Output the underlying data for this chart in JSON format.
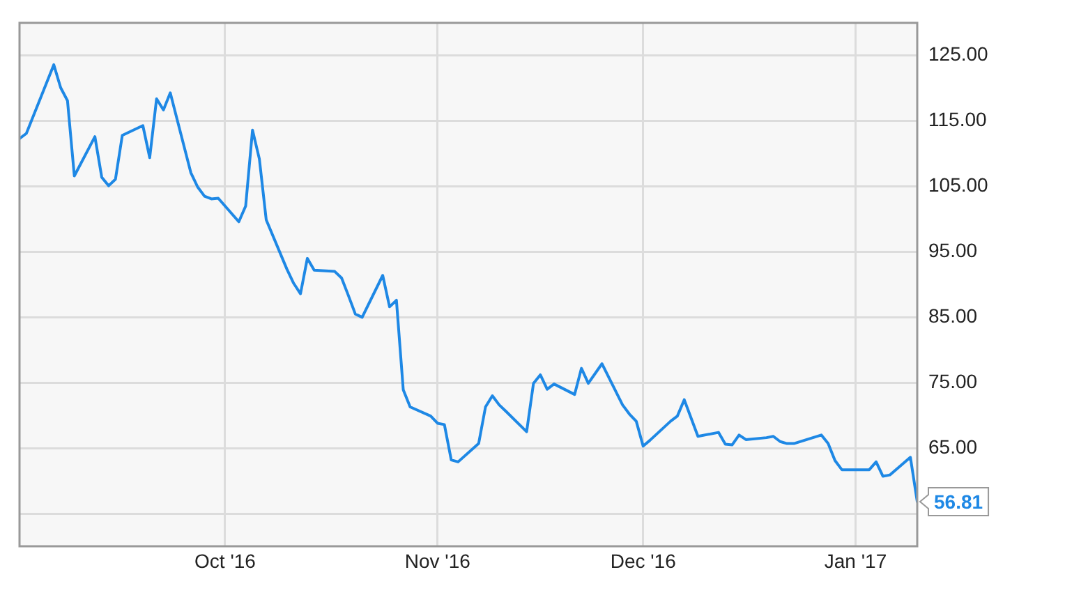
{
  "chart_data": {
    "type": "line",
    "x": [
      "2016-09-01",
      "2016-09-02",
      "2016-09-06",
      "2016-09-07",
      "2016-09-08",
      "2016-09-09",
      "2016-09-12",
      "2016-09-13",
      "2016-09-14",
      "2016-09-15",
      "2016-09-16",
      "2016-09-19",
      "2016-09-20",
      "2016-09-21",
      "2016-09-22",
      "2016-09-23",
      "2016-09-26",
      "2016-09-27",
      "2016-09-28",
      "2016-09-29",
      "2016-09-30",
      "2016-10-03",
      "2016-10-04",
      "2016-10-05",
      "2016-10-06",
      "2016-10-07",
      "2016-10-10",
      "2016-10-11",
      "2016-10-12",
      "2016-10-13",
      "2016-10-14",
      "2016-10-17",
      "2016-10-18",
      "2016-10-19",
      "2016-10-20",
      "2016-10-21",
      "2016-10-24",
      "2016-10-25",
      "2016-10-26",
      "2016-10-27",
      "2016-10-28",
      "2016-10-31",
      "2016-11-01",
      "2016-11-02",
      "2016-11-03",
      "2016-11-04",
      "2016-11-07",
      "2016-11-08",
      "2016-11-09",
      "2016-11-10",
      "2016-11-11",
      "2016-11-14",
      "2016-11-15",
      "2016-11-16",
      "2016-11-17",
      "2016-11-18",
      "2016-11-21",
      "2016-11-22",
      "2016-11-23",
      "2016-11-25",
      "2016-11-28",
      "2016-11-29",
      "2016-11-30",
      "2016-12-01",
      "2016-12-02",
      "2016-12-05",
      "2016-12-06",
      "2016-12-07",
      "2016-12-08",
      "2016-12-09",
      "2016-12-12",
      "2016-12-13",
      "2016-12-14",
      "2016-12-15",
      "2016-12-16",
      "2016-12-19",
      "2016-12-20",
      "2016-12-21",
      "2016-12-22",
      "2016-12-23",
      "2016-12-27",
      "2016-12-28",
      "2016-12-29",
      "2016-12-30",
      "2017-01-03",
      "2017-01-04",
      "2017-01-05",
      "2017-01-06",
      "2017-01-09",
      "2017-01-10"
    ],
    "series": [
      {
        "color": "#1e88e5",
        "values": [
          112.3,
          113.1,
          123.6,
          120.1,
          118.1,
          106.6,
          112.6,
          106.4,
          105.1,
          106.1,
          112.8,
          114.3,
          109.4,
          118.4,
          116.7,
          119.3,
          107.1,
          104.9,
          103.5,
          103.1,
          103.2,
          99.6,
          102,
          113.6,
          109.2,
          99.9,
          92.4,
          90.2,
          88.6,
          94,
          92.2,
          92,
          91,
          88.3,
          85.5,
          85,
          91.4,
          86.6,
          87.6,
          73.9,
          71.3,
          69.9,
          68.8,
          68.6,
          63.2,
          62.9,
          65.7,
          71.3,
          73,
          71.6,
          70.6,
          67.5,
          74.9,
          76.2,
          74,
          74.8,
          73.2,
          77.2,
          74.9,
          77.9,
          71.6,
          70.2,
          69.1,
          65.3,
          66.2,
          69.1,
          69.9,
          72.4,
          69.6,
          66.8,
          67.4,
          65.6,
          65.5,
          67,
          66.3,
          66.6,
          66.8,
          66,
          65.7,
          65.7,
          67,
          65.7,
          63.1,
          61.7,
          61.7,
          62.9,
          60.7,
          60.9,
          63.6,
          56.81
        ]
      }
    ],
    "xlim": [
      "2016-09-01",
      "2017-01-10"
    ],
    "xticks": [
      {
        "value": "2016-10-01",
        "label": "Oct '16"
      },
      {
        "value": "2016-11-01",
        "label": "Nov '16"
      },
      {
        "value": "2016-12-01",
        "label": "Dec '16"
      },
      {
        "value": "2017-01-01",
        "label": "Jan '17"
      }
    ],
    "ylim": [
      50,
      130
    ],
    "yticks": [
      {
        "value": 55,
        "label": null
      },
      {
        "value": 65,
        "label": "65.00"
      },
      {
        "value": 75,
        "label": "75.00"
      },
      {
        "value": 85,
        "label": "85.00"
      },
      {
        "value": 95,
        "label": "95.00"
      },
      {
        "value": 105,
        "label": "105.00"
      },
      {
        "value": 115,
        "label": "115.00"
      },
      {
        "value": 125,
        "label": "125.00"
      }
    ],
    "annotations": [
      {
        "text": "56.81",
        "x": "2017-01-10",
        "y": 56.81
      }
    ],
    "grid": true,
    "legend": false,
    "marker": "none",
    "line_style": "solid"
  }
}
